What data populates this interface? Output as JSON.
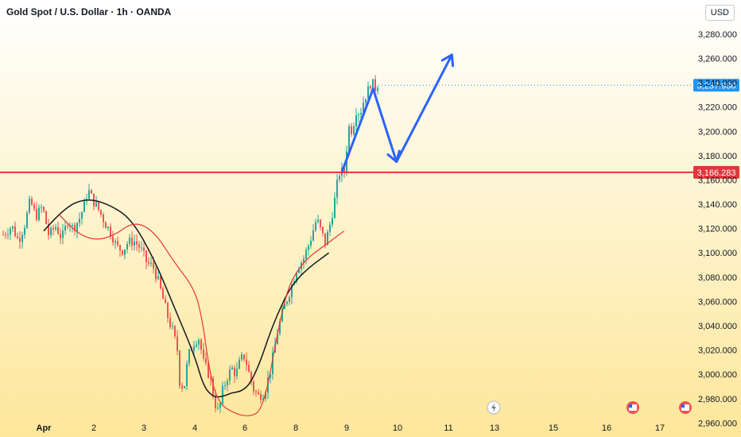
{
  "header": {
    "title": "Gold Spot / U.S. Dollar · 1h · OANDA",
    "currency": "USD"
  },
  "colors": {
    "background_top": "#ffffff",
    "background_bottom": "#fde79a",
    "up_candle": "#26a69a",
    "down_candle": "#ef5350",
    "ema_fast": "#e53935",
    "ema_slow": "#131722",
    "support_line": "#e0363c",
    "arrow": "#2962ff",
    "last_price_tag": "#2196f3"
  },
  "chart_data": {
    "type": "candlestick",
    "title": "Gold Spot / U.S. Dollar · 1h · OANDA",
    "ylim": [
      2955,
      3295
    ],
    "y_ticks": [
      2960,
      2980,
      3000,
      3020,
      3040,
      3060,
      3080,
      3100,
      3120,
      3140,
      3160,
      3180,
      3200,
      3220,
      3240,
      3260,
      3280
    ],
    "y_tick_labels": [
      "2,960.000",
      "2,980.000",
      "3,000.000",
      "3,020.000",
      "3,040.000",
      "3,060.000",
      "3,080.000",
      "3,100.000",
      "3,120.000",
      "3,140.000",
      "3,160.000",
      "3,180.000",
      "3,200.000",
      "3,220.000",
      "3,240.000",
      "3,260.000",
      "3,280.000"
    ],
    "x_labels": [
      "Apr",
      "2",
      "3",
      "4",
      "6",
      "8",
      "9",
      "10",
      "11",
      "13",
      "15",
      "16",
      "17"
    ],
    "x_label_dates": [
      1,
      2,
      3,
      4,
      6,
      8,
      9,
      10,
      11,
      13,
      15,
      16,
      17
    ],
    "support_level": {
      "value": 3166.283,
      "label": "3,166.283"
    },
    "last_price": {
      "value": 3237.93,
      "label": "3,237.930"
    },
    "ohlc_path": [
      [
        1.0,
        3115
      ],
      [
        1.2,
        3122
      ],
      [
        1.35,
        3110
      ],
      [
        1.5,
        3124
      ],
      [
        1.62,
        3143
      ],
      [
        1.75,
        3130
      ],
      [
        1.9,
        3138
      ],
      [
        2.05,
        3114
      ],
      [
        2.2,
        3122
      ],
      [
        2.35,
        3112
      ],
      [
        2.5,
        3128
      ],
      [
        2.6,
        3120
      ],
      [
        2.75,
        3128
      ],
      [
        2.85,
        3138
      ],
      [
        2.95,
        3152
      ],
      [
        3.05,
        3144
      ],
      [
        3.2,
        3135
      ],
      [
        3.35,
        3124
      ],
      [
        3.5,
        3115
      ],
      [
        3.6,
        3105
      ],
      [
        3.75,
        3102
      ],
      [
        3.85,
        3108
      ],
      [
        4.0,
        3110
      ],
      [
        4.15,
        3104
      ],
      [
        4.3,
        3092
      ],
      [
        4.45,
        3088
      ],
      [
        4.55,
        3078
      ],
      [
        4.7,
        3058
      ],
      [
        4.8,
        3045
      ],
      [
        4.9,
        3035
      ],
      [
        5.0,
        3020
      ],
      [
        5.05,
        2995
      ],
      [
        5.15,
        2988
      ],
      [
        5.25,
        3015
      ],
      [
        5.4,
        3028
      ],
      [
        5.5,
        3030
      ],
      [
        5.6,
        3010
      ],
      [
        5.75,
        2998
      ],
      [
        5.85,
        2978
      ],
      [
        5.95,
        2968
      ],
      [
        6.05,
        2988
      ],
      [
        6.15,
        2998
      ],
      [
        6.25,
        3005
      ],
      [
        6.35,
        3000
      ],
      [
        6.45,
        3012
      ],
      [
        6.55,
        3015
      ],
      [
        6.65,
        3000
      ],
      [
        6.75,
        2988
      ],
      [
        6.85,
        2982
      ],
      [
        7.0,
        2985
      ],
      [
        7.15,
        3005
      ],
      [
        7.3,
        3035
      ],
      [
        7.45,
        3055
      ],
      [
        7.6,
        3070
      ],
      [
        7.75,
        3088
      ],
      [
        7.9,
        3095
      ],
      [
        8.05,
        3110
      ],
      [
        8.2,
        3128
      ],
      [
        8.3,
        3118
      ],
      [
        8.4,
        3108
      ],
      [
        8.5,
        3122
      ],
      [
        8.6,
        3140
      ],
      [
        8.68,
        3158
      ],
      [
        8.75,
        3170
      ],
      [
        8.82,
        3162
      ],
      [
        8.9,
        3190
      ],
      [
        8.95,
        3205
      ],
      [
        9.02,
        3200
      ],
      [
        9.1,
        3218
      ],
      [
        9.2,
        3215
      ],
      [
        9.3,
        3228
      ],
      [
        9.4,
        3235
      ],
      [
        9.47,
        3244
      ],
      [
        9.52,
        3232
      ],
      [
        9.58,
        3240
      ],
      [
        9.65,
        3238
      ]
    ],
    "ema_fast_points": [
      [
        1.3,
        3132
      ],
      [
        1.6,
        3118
      ],
      [
        2.0,
        3110
      ],
      [
        2.4,
        3114
      ],
      [
        2.8,
        3126
      ],
      [
        3.2,
        3118
      ],
      [
        3.6,
        3092
      ],
      [
        4.0,
        3070
      ],
      [
        4.3,
        3045
      ],
      [
        4.55,
        3008
      ],
      [
        4.8,
        2985
      ],
      [
        5.1,
        2974
      ],
      [
        5.5,
        2969
      ],
      [
        5.9,
        2966
      ],
      [
        6.3,
        2966
      ],
      [
        6.6,
        2970
      ],
      [
        6.9,
        2990
      ],
      [
        7.2,
        3025
      ],
      [
        7.5,
        3055
      ],
      [
        7.8,
        3077
      ],
      [
        8.2,
        3095
      ],
      [
        8.6,
        3107
      ],
      [
        8.95,
        3118
      ]
    ],
    "ema_slow_points": [
      [
        1.0,
        3118
      ],
      [
        1.4,
        3137
      ],
      [
        1.85,
        3145
      ],
      [
        2.3,
        3140
      ],
      [
        2.75,
        3128
      ],
      [
        3.2,
        3095
      ],
      [
        3.6,
        3055
      ],
      [
        4.0,
        3015
      ],
      [
        4.35,
        2990
      ],
      [
        4.75,
        2981
      ],
      [
        5.15,
        2982
      ],
      [
        5.5,
        2985
      ],
      [
        5.85,
        2986
      ],
      [
        6.2,
        2992
      ],
      [
        6.6,
        3010
      ],
      [
        7.0,
        3035
      ],
      [
        7.4,
        3055
      ],
      [
        7.8,
        3072
      ],
      [
        8.2,
        3086
      ],
      [
        8.65,
        3100
      ]
    ],
    "projection_arrows": [
      [
        [
          8.92,
          3168
        ],
        [
          9.52,
          3235
        ]
      ],
      [
        [
          9.52,
          3235
        ],
        [
          9.98,
          3175
        ]
      ],
      [
        [
          9.98,
          3175
        ],
        [
          11.15,
          3263
        ]
      ]
    ],
    "legend": "none",
    "grid": false
  }
}
